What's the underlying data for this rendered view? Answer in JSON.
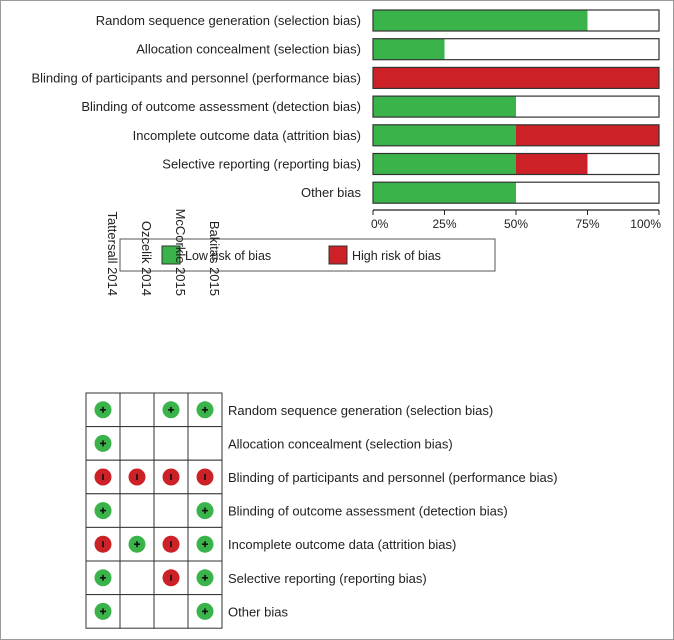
{
  "chart_data": [
    {
      "type": "bar",
      "orientation": "horizontal",
      "stacked": true,
      "categories": [
        "Random sequence generation (selection bias)",
        "Allocation concealment (selection bias)",
        "Blinding of participants and personnel (performance bias)",
        "Blinding of outcome assessment (detection bias)",
        "Incomplete outcome data (attrition bias)",
        "Selective reporting (reporting bias)",
        "Other bias"
      ],
      "series": [
        {
          "name": "Low risk of bias",
          "color": "#3ab44a",
          "values": [
            75,
            25,
            0,
            50,
            50,
            50,
            50
          ]
        },
        {
          "name": "High risk of bias",
          "color": "#cc2127",
          "values": [
            0,
            0,
            100,
            0,
            50,
            25,
            0
          ]
        }
      ],
      "xlim": [
        0,
        100
      ],
      "ticks": [
        "0%",
        "25%",
        "50%",
        "75%",
        "100%"
      ],
      "legend": {
        "position": "bottom",
        "items": [
          "Low risk of bias",
          "High risk of bias"
        ]
      }
    },
    {
      "type": "table",
      "studies": [
        "Tattersall 2014",
        "Ozcelik 2014",
        "McCorkle 2015",
        "Bakitas 2015"
      ],
      "domains": [
        "Random sequence generation (selection bias)",
        "Allocation concealment (selection bias)",
        "Blinding of participants and personnel (performance bias)",
        "Blinding of outcome assessment (detection bias)",
        "Incomplete outcome data (attrition bias)",
        "Selective reporting (reporting bias)",
        "Other bias"
      ],
      "judgements": [
        [
          "+",
          "",
          "+",
          "+"
        ],
        [
          "+",
          "",
          "",
          ""
        ],
        [
          "-",
          "-",
          "-",
          "-"
        ],
        [
          "+",
          "",
          "",
          "+"
        ],
        [
          "-",
          "+",
          "-",
          "+"
        ],
        [
          "+",
          "",
          "-",
          "+"
        ],
        [
          "+",
          "",
          "",
          "+"
        ]
      ],
      "symbols": {
        "+": "Low risk of bias",
        "-": "High risk of bias"
      },
      "colors": {
        "low": "#3ab44a",
        "high": "#cc2127"
      }
    }
  ]
}
